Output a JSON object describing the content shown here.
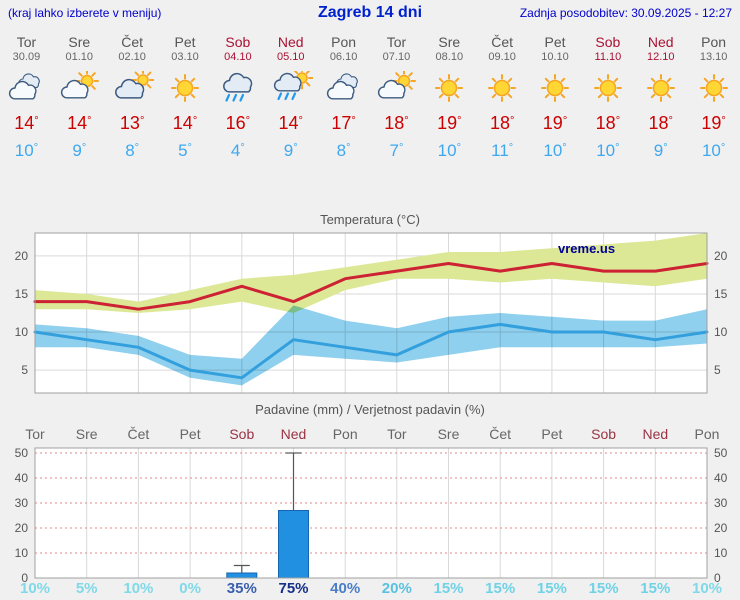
{
  "header": {
    "left_note": "(kraj lahko izberete v meniju)",
    "title": "Zagreb 14 dni",
    "updated": "Zadnja posodobitev: 30.09.2025 - 12:27"
  },
  "colors": {
    "header_blue": "#0000cc",
    "high_temp_red": "#cc0000",
    "low_temp_blue": "#3da8f0",
    "weekend_red": "#aa1133",
    "weekday_gray": "#555555"
  },
  "forecast": {
    "deg": "°",
    "days": [
      {
        "name": "Tor",
        "date": "30.09",
        "weekend": false,
        "icon": "cloudy",
        "high": 14,
        "low": 10
      },
      {
        "name": "Sre",
        "date": "01.10",
        "weekend": false,
        "icon": "partly-cloudy",
        "high": 14,
        "low": 9
      },
      {
        "name": "Čet",
        "date": "02.10",
        "weekend": false,
        "icon": "mostly-cloudy",
        "high": 13,
        "low": 8
      },
      {
        "name": "Pet",
        "date": "03.10",
        "weekend": false,
        "icon": "sunny",
        "high": 14,
        "low": 5
      },
      {
        "name": "Sob",
        "date": "04.10",
        "weekend": true,
        "icon": "rain",
        "high": 16,
        "low": 4
      },
      {
        "name": "Ned",
        "date": "05.10",
        "weekend": true,
        "icon": "rain-sun",
        "high": 14,
        "low": 9
      },
      {
        "name": "Pon",
        "date": "06.10",
        "weekend": false,
        "icon": "cloudy",
        "high": 17,
        "low": 8
      },
      {
        "name": "Tor",
        "date": "07.10",
        "weekend": false,
        "icon": "partly-cloudy",
        "high": 18,
        "low": 7
      },
      {
        "name": "Sre",
        "date": "08.10",
        "weekend": false,
        "icon": "sunny",
        "high": 19,
        "low": 10
      },
      {
        "name": "Čet",
        "date": "09.10",
        "weekend": false,
        "icon": "sunny",
        "high": 18,
        "low": 11
      },
      {
        "name": "Pet",
        "date": "10.10",
        "weekend": false,
        "icon": "sunny",
        "high": 19,
        "low": 10
      },
      {
        "name": "Sob",
        "date": "11.10",
        "weekend": true,
        "icon": "sunny",
        "high": 18,
        "low": 10
      },
      {
        "name": "Ned",
        "date": "12.10",
        "weekend": true,
        "icon": "sunny",
        "high": 18,
        "low": 9
      },
      {
        "name": "Pon",
        "date": "13.10",
        "weekend": false,
        "icon": "sunny",
        "high": 19,
        "low": 10
      }
    ]
  },
  "chart_data": [
    {
      "type": "line",
      "title": "Temperatura (°C)",
      "watermark": "vreme.us",
      "categories": [
        "Tor",
        "Sre",
        "Čet",
        "Pet",
        "Sob",
        "Ned",
        "Pon",
        "Tor",
        "Sre",
        "Čet",
        "Pet",
        "Sob",
        "Ned",
        "Pon"
      ],
      "ylim": [
        2,
        23
      ],
      "yticks": [
        5,
        10,
        15,
        20
      ],
      "grid": true,
      "legend_position": "none",
      "series": [
        {
          "name": "temperatura-max",
          "color": "#cc2233",
          "values": [
            14,
            14,
            13,
            14,
            16,
            14,
            17,
            18,
            19,
            18,
            19,
            18,
            18,
            19
          ]
        },
        {
          "name": "temperatura-min",
          "color": "#33a0dd",
          "values": [
            10,
            9,
            8,
            5,
            4,
            9,
            8,
            7,
            10,
            11,
            10,
            10,
            9,
            10
          ]
        }
      ],
      "bands": [
        {
          "name": "max-temp-range",
          "color": "#dce895",
          "upper": [
            15.5,
            15,
            14,
            15.5,
            17,
            17.5,
            18.5,
            19.5,
            20.5,
            20.5,
            21,
            21.5,
            22,
            23
          ],
          "lower": [
            13,
            13,
            12.5,
            13,
            14,
            12.5,
            15.5,
            17,
            17,
            16.5,
            17,
            16.5,
            16,
            17
          ]
        },
        {
          "name": "min-temp-range",
          "color": "#8fd0ee",
          "upper": [
            11,
            10.5,
            9.5,
            7,
            6.5,
            13.5,
            11.5,
            10.5,
            12,
            12.5,
            12,
            11.5,
            11.5,
            13
          ],
          "lower": [
            8,
            8,
            7,
            4,
            3,
            7,
            6.5,
            6,
            7,
            8,
            8,
            8,
            8,
            8.5
          ]
        }
      ]
    },
    {
      "type": "bar",
      "title": "Padavine (mm) / Verjetnost padavin (%)",
      "categories": [
        "Tor",
        "Sre",
        "Čet",
        "Pet",
        "Sob",
        "Ned",
        "Pon",
        "Tor",
        "Sre",
        "Čet",
        "Pet",
        "Sob",
        "Ned",
        "Pon"
      ],
      "weekend": [
        false,
        false,
        false,
        false,
        true,
        true,
        false,
        false,
        false,
        false,
        false,
        true,
        true,
        false
      ],
      "values": [
        0,
        0,
        0,
        0,
        2,
        27,
        0,
        0,
        0,
        0,
        0,
        0,
        0,
        0
      ],
      "whiskers": [
        0,
        0,
        0,
        0,
        5,
        50,
        0,
        0,
        0,
        0,
        0,
        0,
        0,
        0
      ],
      "bar_color": "#2290e0",
      "ylim": [
        0,
        52
      ],
      "yticks": [
        0,
        10,
        20,
        30,
        40,
        50
      ],
      "probabilities": [
        {
          "label": "10%",
          "color": "#7fd9e8"
        },
        {
          "label": "5%",
          "color": "#7fd9e8"
        },
        {
          "label": "10%",
          "color": "#7fd9e8"
        },
        {
          "label": "0%",
          "color": "#7fd9e8"
        },
        {
          "label": "35%",
          "color": "#3a5fae"
        },
        {
          "label": "75%",
          "color": "#162f8a"
        },
        {
          "label": "40%",
          "color": "#4a7fc8"
        },
        {
          "label": "20%",
          "color": "#59c2e0"
        },
        {
          "label": "15%",
          "color": "#6fd2e6"
        },
        {
          "label": "15%",
          "color": "#6fd2e6"
        },
        {
          "label": "15%",
          "color": "#6fd2e6"
        },
        {
          "label": "15%",
          "color": "#6fd2e6"
        },
        {
          "label": "15%",
          "color": "#6fd2e6"
        },
        {
          "label": "10%",
          "color": "#7fd9e8"
        }
      ]
    }
  ]
}
